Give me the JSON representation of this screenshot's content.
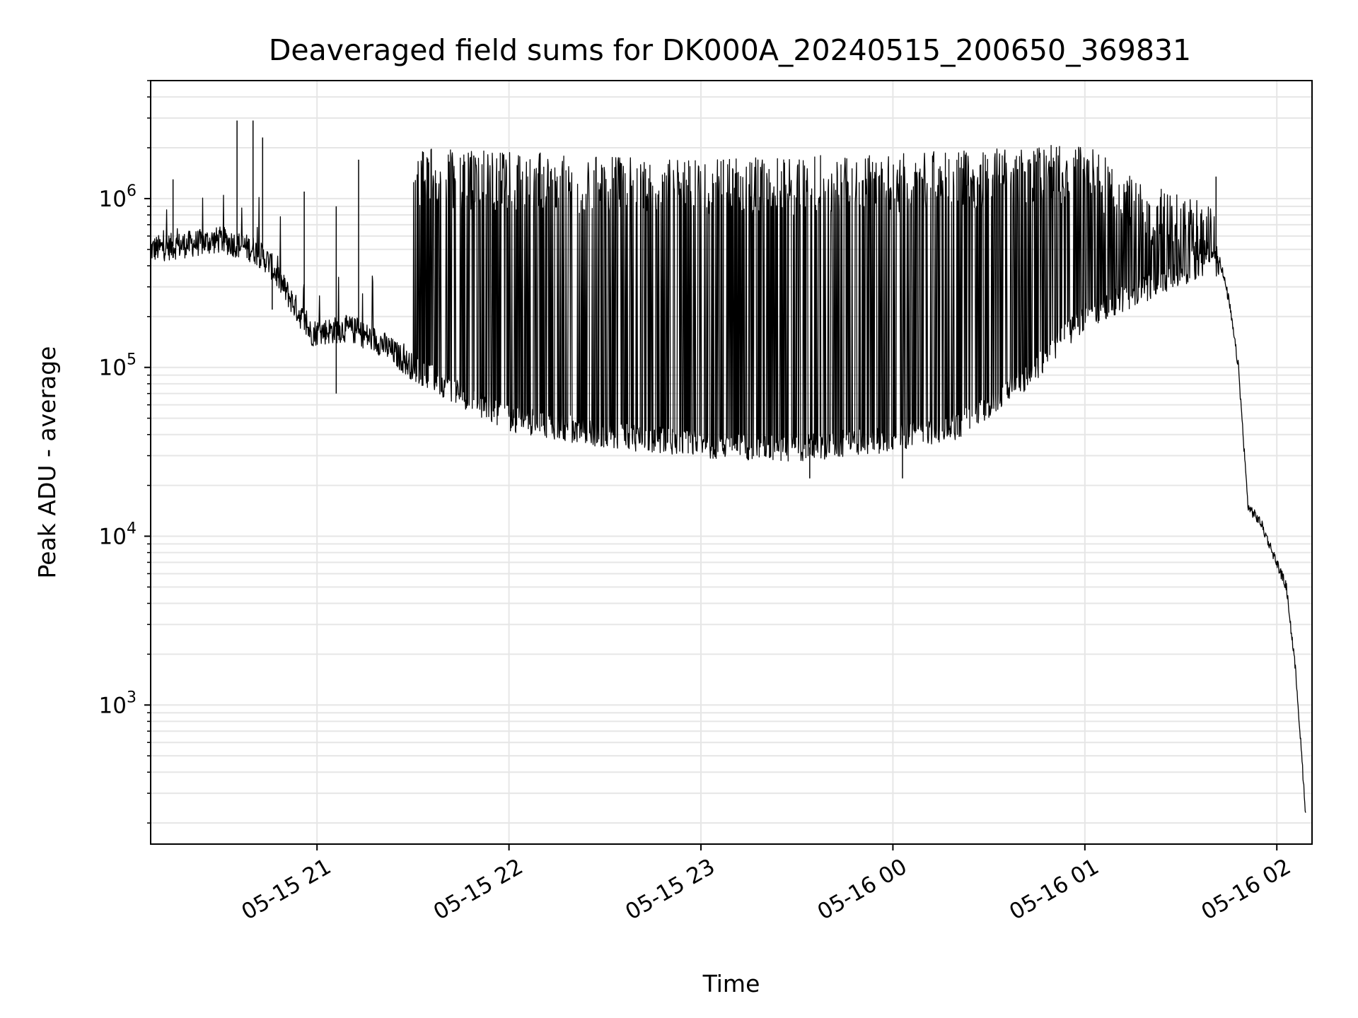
{
  "chart_data": {
    "type": "line",
    "title": "Deaveraged field sums for DK000A_20240515_200650_369831",
    "xlabel": "Time",
    "ylabel": "Peak ADU - average",
    "x_range": [
      "2024-05-15 20:08",
      "2024-05-16 02:11"
    ],
    "ylim": [
      150,
      5000000
    ],
    "yscale": "log",
    "grid": true,
    "line_color": "#000000",
    "x_ticks": [
      {
        "value": "2024-05-15 21:00",
        "label": "05-15 21"
      },
      {
        "value": "2024-05-15 22:00",
        "label": "05-15 22"
      },
      {
        "value": "2024-05-15 23:00",
        "label": "05-15 23"
      },
      {
        "value": "2024-05-16 00:00",
        "label": "05-16 00"
      },
      {
        "value": "2024-05-16 01:00",
        "label": "05-16 01"
      },
      {
        "value": "2024-05-16 02:00",
        "label": "05-16 02"
      }
    ],
    "y_ticks": [
      {
        "value": 1000,
        "base": "10",
        "exp": "3"
      },
      {
        "value": 10000,
        "base": "10",
        "exp": "4"
      },
      {
        "value": 100000,
        "base": "10",
        "exp": "5"
      },
      {
        "value": 1000000,
        "base": "10",
        "exp": "6"
      }
    ],
    "series": [
      {
        "baseline": [
          {
            "t": "2024-05-15 20:08",
            "v": 500000
          },
          {
            "t": "2024-05-15 20:30",
            "v": 570000
          },
          {
            "t": "2024-05-15 20:40",
            "v": 500000
          },
          {
            "t": "2024-05-15 20:45",
            "v": 420000
          },
          {
            "t": "2024-05-15 20:52",
            "v": 250000
          },
          {
            "t": "2024-05-15 20:58",
            "v": 160000
          },
          {
            "t": "2024-05-15 21:10",
            "v": 170000
          },
          {
            "t": "2024-05-15 21:20",
            "v": 140000
          },
          {
            "t": "2024-05-15 21:30",
            "v": 100000
          },
          {
            "t": "2024-05-15 21:45",
            "v": 70000
          },
          {
            "t": "2024-05-15 22:00",
            "v": 50000
          },
          {
            "t": "2024-05-15 22:30",
            "v": 40000
          },
          {
            "t": "2024-05-15 23:00",
            "v": 35000
          },
          {
            "t": "2024-05-15 23:30",
            "v": 33000
          },
          {
            "t": "2024-05-16 00:00",
            "v": 38000
          },
          {
            "t": "2024-05-16 00:20",
            "v": 45000
          },
          {
            "t": "2024-05-16 00:40",
            "v": 80000
          },
          {
            "t": "2024-05-16 01:00",
            "v": 200000
          },
          {
            "t": "2024-05-16 01:20",
            "v": 300000
          },
          {
            "t": "2024-05-16 01:35",
            "v": 400000
          },
          {
            "t": "2024-05-16 01:42",
            "v": 450000
          },
          {
            "t": "2024-05-16 01:45",
            "v": 250000
          },
          {
            "t": "2024-05-16 01:48",
            "v": 100000
          },
          {
            "t": "2024-05-16 01:51",
            "v": 15000
          },
          {
            "t": "2024-05-16 01:55",
            "v": 12000
          },
          {
            "t": "2024-05-16 02:03",
            "v": 5000
          },
          {
            "t": "2024-05-16 02:06",
            "v": 1500
          },
          {
            "t": "2024-05-16 02:09",
            "v": 230
          }
        ],
        "upper": [
          {
            "t": "2024-05-15 20:08",
            "v": 800000
          },
          {
            "t": "2024-05-15 20:40",
            "v": 900000
          },
          {
            "t": "2024-05-15 20:45",
            "v": 500000
          },
          {
            "t": "2024-05-15 21:00",
            "v": 200000
          },
          {
            "t": "2024-05-15 21:20",
            "v": 180000
          },
          {
            "t": "2024-05-15 21:30",
            "v": 1500000
          },
          {
            "t": "2024-05-15 23:00",
            "v": 1300000
          },
          {
            "t": "2024-05-16 00:00",
            "v": 1400000
          },
          {
            "t": "2024-05-16 01:00",
            "v": 1600000
          },
          {
            "t": "2024-05-16 01:20",
            "v": 900000
          },
          {
            "t": "2024-05-16 01:40",
            "v": 700000
          },
          {
            "t": "2024-05-16 01:42",
            "v": 500000
          }
        ],
        "spikes": [
          {
            "t": "2024-05-15 20:35",
            "v": 2900000
          },
          {
            "t": "2024-05-15 20:40",
            "v": 2900000
          },
          {
            "t": "2024-05-15 20:43",
            "v": 2300000
          },
          {
            "t": "2024-05-15 20:15",
            "v": 1300000
          },
          {
            "t": "2024-05-15 20:56",
            "v": 1100000
          },
          {
            "t": "2024-05-15 21:06",
            "v": 900000
          },
          {
            "t": "2024-05-15 21:13",
            "v": 1700000
          },
          {
            "t": "2024-05-15 21:49",
            "v": 1800000
          },
          {
            "t": "2024-05-15 23:07",
            "v": 1700000
          },
          {
            "t": "2024-05-16 01:41",
            "v": 1350000
          }
        ],
        "dips": [
          {
            "t": "2024-05-15 20:46",
            "v": 220000
          },
          {
            "t": "2024-05-15 21:06",
            "v": 70000
          },
          {
            "t": "2024-05-15 23:34",
            "v": 22000
          },
          {
            "t": "2024-05-16 00:03",
            "v": 22000
          }
        ]
      }
    ]
  }
}
